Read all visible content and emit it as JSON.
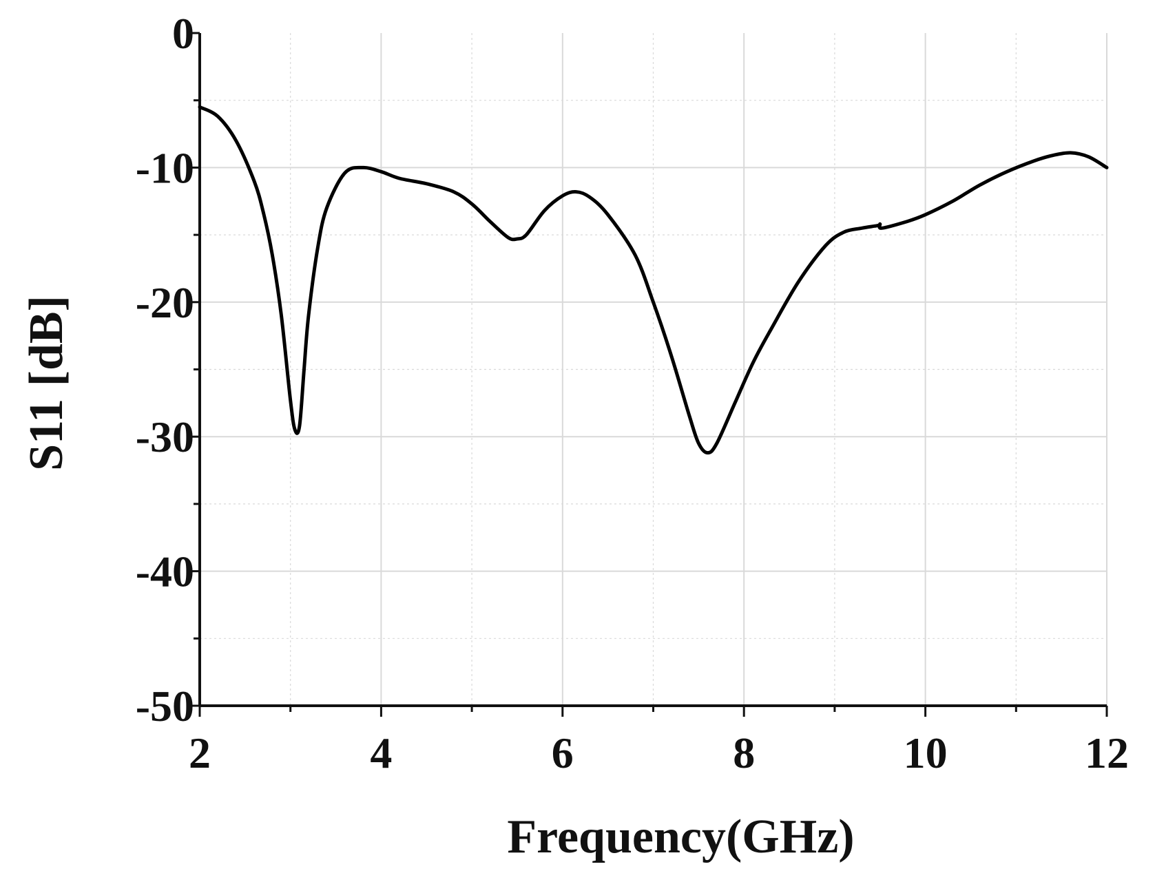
{
  "chart_data": {
    "type": "line",
    "xlabel": "Frequency(GHz)",
    "ylabel": "S11 [dB]",
    "xlim": [
      2,
      12
    ],
    "ylim": [
      -50,
      0
    ],
    "x_ticks": [
      2,
      4,
      6,
      8,
      10,
      12
    ],
    "x_tick_labels": [
      "2",
      "4",
      "6",
      "8",
      "10",
      "12"
    ],
    "y_ticks": [
      0,
      -10,
      -20,
      -30,
      -40,
      -50
    ],
    "y_tick_labels": [
      "0",
      "-10",
      "-20",
      "-30",
      "-40",
      "-50"
    ],
    "grid": true,
    "legend": "none",
    "line_color": "#000000",
    "grid_color": "#d9d9d9",
    "series": [
      {
        "x": [
          2.0,
          2.2,
          2.4,
          2.6,
          2.7,
          2.8,
          2.9,
          3.0,
          3.05,
          3.1,
          3.15,
          3.2,
          3.3,
          3.4,
          3.6,
          3.8,
          4.0,
          4.2,
          4.5,
          4.8,
          5.0,
          5.2,
          5.4,
          5.5,
          5.6,
          5.8,
          6.0,
          6.15,
          6.3,
          6.5,
          6.8,
          7.0,
          7.2,
          7.4,
          7.5,
          7.6,
          7.7,
          7.9,
          8.1,
          8.3,
          8.6,
          8.9,
          9.1,
          9.3,
          9.48,
          9.5,
          9.52,
          9.8,
          10.0,
          10.3,
          10.6,
          10.9,
          11.2,
          11.4,
          11.6,
          11.8,
          12.0
        ],
        "y": [
          -5.5,
          -6.2,
          -8.0,
          -11.0,
          -13.3,
          -16.5,
          -21.0,
          -27.3,
          -29.5,
          -29.2,
          -25.0,
          -21.0,
          -16.0,
          -13.0,
          -10.4,
          -10.0,
          -10.3,
          -10.8,
          -11.2,
          -11.8,
          -12.7,
          -14.0,
          -15.2,
          -15.3,
          -15.0,
          -13.2,
          -12.1,
          -11.8,
          -12.2,
          -13.5,
          -16.5,
          -20.0,
          -24.0,
          -28.5,
          -30.5,
          -31.2,
          -30.5,
          -27.5,
          -24.5,
          -22.0,
          -18.5,
          -15.8,
          -14.8,
          -14.5,
          -14.3,
          -14.2,
          -14.5,
          -14.0,
          -13.5,
          -12.5,
          -11.3,
          -10.3,
          -9.5,
          -9.1,
          -8.9,
          -9.2,
          -10.0
        ]
      }
    ]
  }
}
